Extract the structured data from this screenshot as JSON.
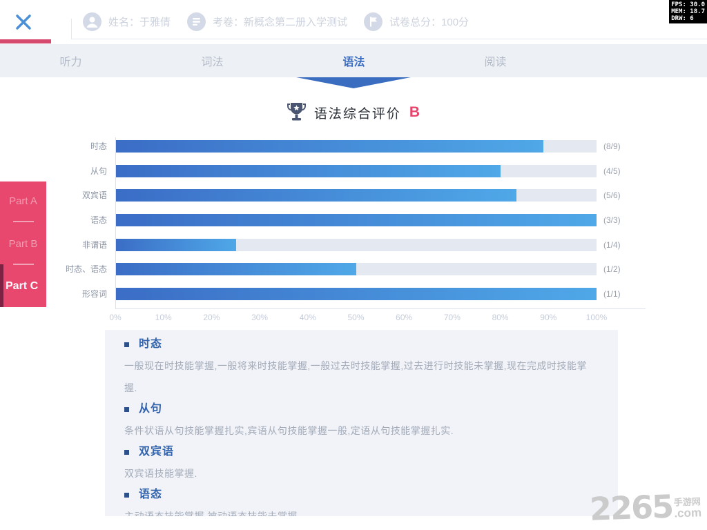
{
  "debug": {
    "fps": "FPS: 30.0",
    "mem": "MEM: 18.7",
    "drw": "DRW: 6"
  },
  "header": {
    "name_label": "姓名：于雅倩",
    "paper_label": "考卷：新概念第二册入学测试",
    "score_label": "试卷总分：100分"
  },
  "tabs": [
    {
      "label": "听力",
      "active": false
    },
    {
      "label": "词法",
      "active": false
    },
    {
      "label": "语法",
      "active": true
    },
    {
      "label": "阅读",
      "active": false
    }
  ],
  "sidebar": {
    "items": [
      {
        "label": "Part A",
        "active": false
      },
      {
        "label": "Part B",
        "active": false
      },
      {
        "label": "Part C",
        "active": true
      }
    ]
  },
  "title": {
    "text": "语法综合评价",
    "grade": "B"
  },
  "chart_data": {
    "type": "bar",
    "orientation": "horizontal",
    "title": "语法综合评价 B",
    "categories": [
      "时态",
      "从句",
      "双宾语",
      "语态",
      "非谓语",
      "时态、语态",
      "形容词"
    ],
    "values": [
      88.9,
      80,
      83.3,
      100,
      25,
      50,
      100
    ],
    "value_labels": [
      "(8/9)",
      "(4/5)",
      "(5/6)",
      "(3/3)",
      "(1/4)",
      "(1/2)",
      "(1/1)"
    ],
    "scores": [
      {
        "category": "时态",
        "correct": 8,
        "total": 9
      },
      {
        "category": "从句",
        "correct": 4,
        "total": 5
      },
      {
        "category": "双宾语",
        "correct": 5,
        "total": 6
      },
      {
        "category": "语态",
        "correct": 3,
        "total": 3
      },
      {
        "category": "非谓语",
        "correct": 1,
        "total": 4
      },
      {
        "category": "时态、语态",
        "correct": 1,
        "total": 2
      },
      {
        "category": "形容词",
        "correct": 1,
        "total": 1
      }
    ],
    "x_ticks": [
      "0%",
      "10%",
      "20%",
      "30%",
      "40%",
      "50%",
      "60%",
      "70%",
      "80%",
      "90%",
      "100%"
    ],
    "xlim": [
      0,
      100
    ],
    "grid": false,
    "legend": false,
    "bar_color_start": "#3b6dc6",
    "bar_color_end": "#4fa8e8",
    "track_color": "#e4e8f1"
  },
  "sections": [
    {
      "heading": "时态",
      "body": "一般现在时技能掌握,一般将来时技能掌握,一般过去时技能掌握,过去进行时技能未掌握,现在完成时技能掌握."
    },
    {
      "heading": "从句",
      "body": "条件状语从句技能掌握扎实,宾语从句技能掌握一般,定语从句技能掌握扎实."
    },
    {
      "heading": "双宾语",
      "body": "双宾语技能掌握."
    },
    {
      "heading": "语态",
      "body": "主动语态技能掌握,被动语态技能未掌握."
    }
  ],
  "watermark": {
    "big": "2265",
    "small_top": "手游网",
    "small_bottom": ".com"
  },
  "colors": {
    "accent_pink": "#e8486e",
    "accent_blue": "#3a6cc0",
    "tabbar_bg": "#edf0f5",
    "panel_bg": "#f1f3f8",
    "grade_color": "#e8436a",
    "sidebar_strip": "#7d2243"
  }
}
